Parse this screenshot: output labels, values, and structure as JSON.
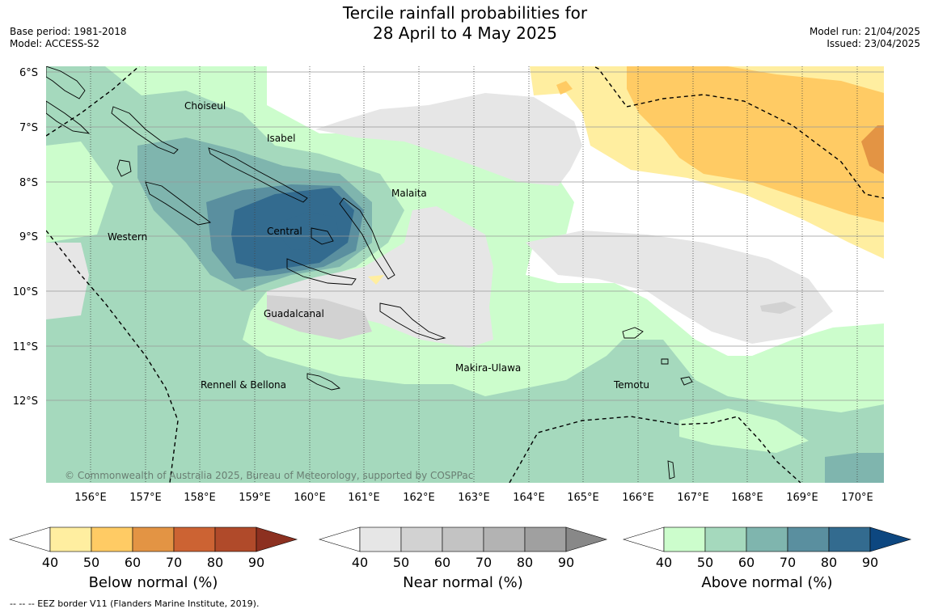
{
  "header": {
    "title_line1": "Tercile rainfall probabilities for",
    "title_line2": "28 April to 4 May 2025",
    "base_period": "Base period: 1981-2018",
    "model": "Model: ACCESS-S2",
    "model_run": "Model run: 21/04/2025",
    "issued": "Issued: 23/04/2025"
  },
  "map": {
    "lat_labels": [
      "6°S",
      "7°S",
      "8°S",
      "9°S",
      "10°S",
      "11°S",
      "12°S"
    ],
    "lon_labels": [
      "156°E",
      "157°E",
      "158°E",
      "159°E",
      "160°E",
      "161°E",
      "162°E",
      "163°E",
      "164°E",
      "165°E",
      "166°E",
      "167°E",
      "168°E",
      "169°E",
      "170°E"
    ],
    "places": [
      "Choiseul",
      "Isabel",
      "Malaita",
      "Western",
      "Central",
      "Guadalcanal",
      "Makira-Ulawa",
      "Rennell & Bellona",
      "Temotu"
    ],
    "copyright": "© Commonwealth of Australia 2025, Bureau of Meteorology, supported by COSPPac",
    "colors": {
      "above_40": "#ccfdcc",
      "above_50": "#a5d9bd",
      "above_60": "#7fb5ae",
      "above_70": "#5a8f9f",
      "above_80": "#336b8f",
      "above_90": "#0d4780",
      "near_40": "#e6e6e6",
      "near_50": "#d2d2d2",
      "below_40": "#ffeea0",
      "below_50": "#ffcb64",
      "below_60": "#e39444"
    }
  },
  "colorbars": [
    {
      "label": "Below normal (%)",
      "ticks": [
        "40",
        "50",
        "60",
        "70",
        "80",
        "90"
      ],
      "colors": [
        "#ffffff",
        "#ffeea0",
        "#ffcb64",
        "#e39444",
        "#cc6333",
        "#b04a2a",
        "#8c3020"
      ]
    },
    {
      "label": "Near normal (%)",
      "ticks": [
        "40",
        "50",
        "60",
        "70",
        "80",
        "90"
      ],
      "colors": [
        "#ffffff",
        "#e6e6e6",
        "#d2d2d2",
        "#c3c3c3",
        "#b3b3b3",
        "#a0a0a0",
        "#888888"
      ]
    },
    {
      "label": "Above normal (%)",
      "ticks": [
        "40",
        "50",
        "60",
        "70",
        "80",
        "90"
      ],
      "colors": [
        "#ffffff",
        "#ccfdcc",
        "#a5d9bd",
        "#7fb5ae",
        "#5a8f9f",
        "#336b8f",
        "#0d4780"
      ]
    }
  ],
  "footer": "-- -- -- EEZ border V11 (Flanders Marine Institute, 2019)."
}
